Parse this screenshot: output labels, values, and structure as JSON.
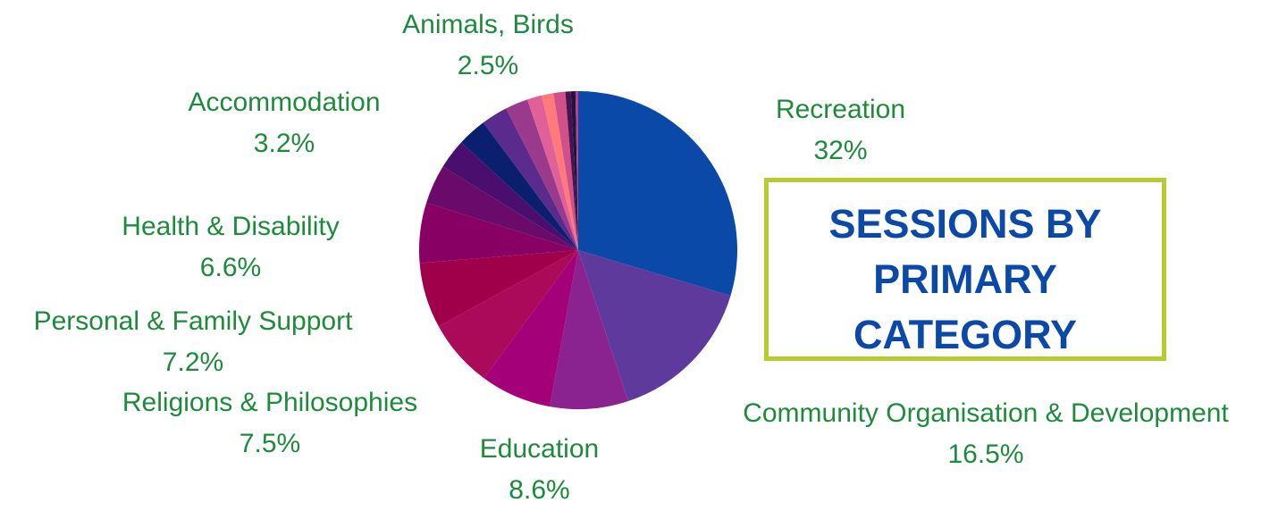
{
  "chart_data": {
    "type": "pie",
    "title": "SESSIONS BY PRIMARY CATEGORY",
    "slices": [
      {
        "label": "Recreation",
        "value_label": "32%",
        "value": 32,
        "color": "#0b49a8"
      },
      {
        "label": "Community Organisation & Development",
        "value_label": "16.5%",
        "value": 16.5,
        "color": "#5e3a9c"
      },
      {
        "label": "Education",
        "value_label": "8.6%",
        "value": 8.6,
        "color": "#8a2390"
      },
      {
        "label": "",
        "value_label": "",
        "value": 7.8,
        "color": "#a3007a"
      },
      {
        "label": "Religions & Philosophies",
        "value_label": "7.5%",
        "value": 7.5,
        "color": "#ab0a5a"
      },
      {
        "label": "Personal & Family Support",
        "value_label": "7.2%",
        "value": 7.2,
        "color": "#a0004a"
      },
      {
        "label": "Health & Disability",
        "value_label": "6.6%",
        "value": 6.6,
        "color": "#880063"
      },
      {
        "label": "",
        "value_label": "",
        "value": 4.3,
        "color": "#6a0a6a"
      },
      {
        "label": "",
        "value_label": "",
        "value": 3.3,
        "color": "#4a0f6e"
      },
      {
        "label": "Accommodation",
        "value_label": "3.2%",
        "value": 3.2,
        "color": "#0a1f6e"
      },
      {
        "label": "",
        "value_label": "",
        "value": 2.9,
        "color": "#5a2a8c"
      },
      {
        "label": "Animals, Birds",
        "value_label": "2.5%",
        "value": 2.5,
        "color": "#9a3a8c"
      },
      {
        "label": "",
        "value_label": "",
        "value": 1.6,
        "color": "#e0609a"
      },
      {
        "label": "",
        "value_label": "",
        "value": 1.3,
        "color": "#ff7a7a"
      },
      {
        "label": "",
        "value_label": "",
        "value": 1.3,
        "color": "#d0508a"
      },
      {
        "label": "",
        "value_label": "",
        "value": 0.6,
        "color": "#4a1050"
      },
      {
        "label": "",
        "value_label": "",
        "value": 0.5,
        "color": "#1a1640"
      },
      {
        "label": "",
        "value_label": "",
        "value": 0.3,
        "color": "#c23a8a"
      }
    ]
  },
  "labels": {
    "recreation": {
      "name": "Recreation",
      "pct": "32%"
    },
    "community": {
      "name": "Community Organisation & Development",
      "pct": "16.5%"
    },
    "education": {
      "name": "Education",
      "pct": "8.6%"
    },
    "religions": {
      "name": "Religions & Philosophies",
      "pct": "7.5%"
    },
    "personal": {
      "name": "Personal & Family Support",
      "pct": "7.2%"
    },
    "health": {
      "name": "Health & Disability",
      "pct": "6.6%"
    },
    "accommodation": {
      "name": "Accommodation",
      "pct": "3.2%"
    },
    "animals": {
      "name": "Animals, Birds",
      "pct": "2.5%"
    }
  },
  "title_box": {
    "text": "SESSIONS BY\nPRIMARY\nCATEGORY",
    "border_color": "#b7cc2f",
    "text_color": "#0b49a8"
  },
  "label_color": "#1e8a3c"
}
